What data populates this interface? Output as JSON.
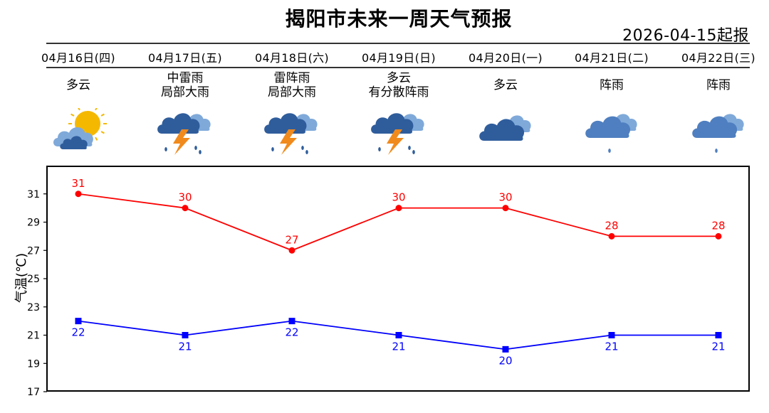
{
  "title": "揭阳市未来一周天气预报",
  "issue_date": "2026-04-15起报",
  "days": [
    {
      "date": "04月16日(四)",
      "weather": [
        "多云"
      ],
      "icon": "partly-cloudy-sun-icon"
    },
    {
      "date": "04月17日(五)",
      "weather": [
        "中雷雨",
        "局部大雨"
      ],
      "icon": "thunderstorm-icon"
    },
    {
      "date": "04月18日(六)",
      "weather": [
        "雷阵雨",
        "局部大雨"
      ],
      "icon": "thunderstorm-icon"
    },
    {
      "date": "04月19日(日)",
      "weather": [
        "多云",
        "有分散阵雨"
      ],
      "icon": "thunderstorm-icon"
    },
    {
      "date": "04月20日(一)",
      "weather": [
        "多云"
      ],
      "icon": "cloudy-icon"
    },
    {
      "date": "04月21日(二)",
      "weather": [
        "阵雨"
      ],
      "icon": "shower-icon"
    },
    {
      "date": "04月22日(三)",
      "weather": [
        "阵雨"
      ],
      "icon": "shower-icon"
    }
  ],
  "colors": {
    "high": "#ff0000",
    "low": "#0000ff",
    "sun": "#f5b800",
    "cloud_dark": "#2f5d9c",
    "cloud_light": "#7fa9d9",
    "bolt": "#f08a1c"
  },
  "chart_data": {
    "type": "line",
    "ylabel": "气温(℃)",
    "ylim": [
      17,
      33
    ],
    "yticks": [
      17,
      19,
      21,
      23,
      25,
      27,
      29,
      31
    ],
    "categories": [
      "04月16日(四)",
      "04月17日(五)",
      "04月18日(六)",
      "04月19日(日)",
      "04月20日(一)",
      "04月21日(二)",
      "04月22日(三)"
    ],
    "series": [
      {
        "values": [
          31,
          30,
          27,
          30,
          30,
          28,
          28
        ],
        "color": "#ff0000",
        "marker": "circle"
      },
      {
        "values": [
          22,
          21,
          22,
          21,
          20,
          21,
          21
        ],
        "color": "#0000ff",
        "marker": "square"
      }
    ],
    "grid": false,
    "legend": "none"
  }
}
